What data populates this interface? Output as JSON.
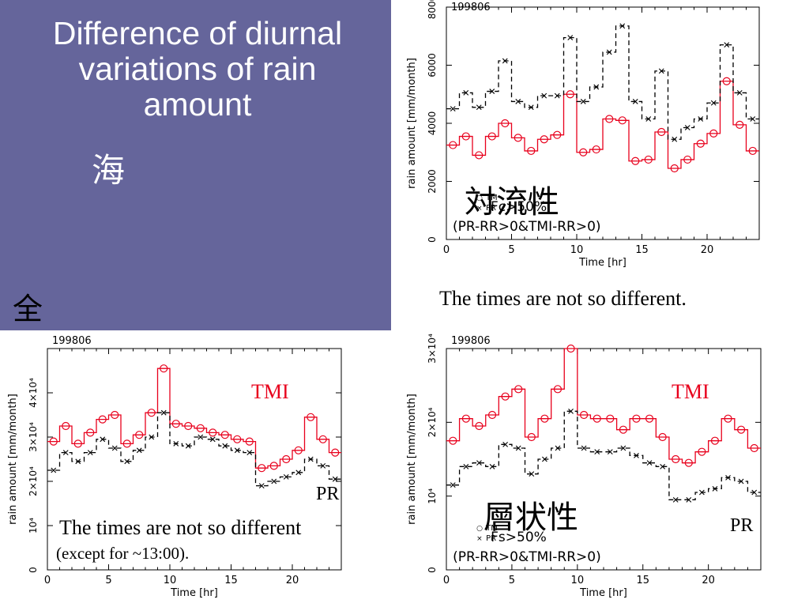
{
  "slide": {
    "title": "Difference of diurnal variations of rain amount",
    "label_sea": "海",
    "label_all": "全",
    "colors": {
      "panel": "#65659b",
      "tmi": "#e8001c",
      "pr": "#000000"
    }
  },
  "chart_data": [
    {
      "id": "convective",
      "type": "line",
      "step": true,
      "title": "199806",
      "xlabel": "Time [hr]",
      "ylabel": "rain amount [mm/month]",
      "xlim": [
        0,
        24
      ],
      "ylim": [
        0,
        8000
      ],
      "xticks": [
        0,
        5,
        10,
        15,
        20
      ],
      "yticks": [
        0,
        2000,
        4000,
        6000,
        8000
      ],
      "ytick_labels": [
        "0",
        "2000",
        "4000",
        "6000",
        "8000"
      ],
      "x": [
        0.5,
        1.5,
        2.5,
        3.5,
        4.5,
        5.5,
        6.5,
        7.5,
        8.5,
        9.5,
        10.5,
        11.5,
        12.5,
        13.5,
        14.5,
        15.5,
        16.5,
        17.5,
        18.5,
        19.5,
        20.5,
        21.5,
        22.5,
        23.5
      ],
      "series": [
        {
          "name": "TMI",
          "color": "#e8001c",
          "marker": "circle",
          "dash": false,
          "values": [
            3250,
            3550,
            2900,
            3550,
            4000,
            3500,
            3050,
            3450,
            3600,
            5000,
            3000,
            3100,
            4150,
            4100,
            2700,
            2750,
            3700,
            2450,
            2750,
            3300,
            3650,
            5450,
            3950,
            3050
          ]
        },
        {
          "name": "PR",
          "color": "#000000",
          "marker": "x",
          "dash": true,
          "values": [
            4500,
            5050,
            4550,
            5100,
            6150,
            4750,
            4550,
            4950,
            4950,
            6950,
            4750,
            5250,
            6450,
            7350,
            4750,
            4150,
            5800,
            3450,
            3850,
            4150,
            4700,
            6700,
            5050,
            4150
          ]
        }
      ],
      "legend": {
        "tm": "TM",
        "pr": "PR",
        "cond": "Fc>50%",
        "filter": "(PR-RR>0&TMI-RR>0)"
      },
      "heading": "対流性",
      "note": "The times are not so different."
    },
    {
      "id": "all",
      "type": "line",
      "step": true,
      "title": "199806",
      "xlabel": "Time [hr]",
      "ylabel": "rain amount [mm/month]",
      "xlim": [
        0,
        24
      ],
      "ylim": [
        0,
        50000
      ],
      "xticks": [
        0,
        5,
        10,
        15,
        20
      ],
      "yticks": [
        0,
        10000,
        20000,
        30000,
        40000
      ],
      "ytick_labels": [
        "0",
        "10⁴",
        "2×10⁴",
        "3×10⁴",
        "4×10⁴"
      ],
      "x": [
        0.5,
        1.5,
        2.5,
        3.5,
        4.5,
        5.5,
        6.5,
        7.5,
        8.5,
        9.5,
        10.5,
        11.5,
        12.5,
        13.5,
        14.5,
        15.5,
        16.5,
        17.5,
        18.5,
        19.5,
        20.5,
        21.5,
        22.5,
        23.5
      ],
      "series": [
        {
          "name": "TMI",
          "color": "#e8001c",
          "marker": "circle",
          "dash": false,
          "values": [
            29000,
            32500,
            28500,
            31000,
            34000,
            35000,
            28500,
            30500,
            35500,
            45500,
            33000,
            32500,
            32000,
            31000,
            30500,
            29500,
            29000,
            23000,
            23500,
            25000,
            27000,
            34500,
            29500,
            26500
          ]
        },
        {
          "name": "PR",
          "color": "#000000",
          "marker": "x",
          "dash": true,
          "values": [
            22500,
            26500,
            24500,
            26500,
            29500,
            27500,
            24500,
            27000,
            30000,
            35500,
            28500,
            28000,
            30000,
            29500,
            28000,
            27000,
            26500,
            19000,
            20000,
            21000,
            22000,
            25000,
            23500,
            20500
          ]
        }
      ],
      "legend": {
        "tm": "",
        "pr": "",
        "cond": "",
        "filter": ""
      },
      "label_tmi": "TMI",
      "label_pr": "PR",
      "note": "The times are not so different",
      "note_paren": "(except for ~13:00)."
    },
    {
      "id": "stratiform",
      "type": "line",
      "step": true,
      "title": "199806",
      "xlabel": "Time [hr]",
      "ylabel": "rain amount [mm/month]",
      "xlim": [
        0,
        24
      ],
      "ylim": [
        0,
        30000
      ],
      "xticks": [
        0,
        5,
        10,
        15,
        20
      ],
      "yticks": [
        0,
        10000,
        20000,
        30000
      ],
      "ytick_labels": [
        "0",
        "10⁴",
        "2×10⁴",
        "3×10⁴"
      ],
      "x": [
        0.5,
        1.5,
        2.5,
        3.5,
        4.5,
        5.5,
        6.5,
        7.5,
        8.5,
        9.5,
        10.5,
        11.5,
        12.5,
        13.5,
        14.5,
        15.5,
        16.5,
        17.5,
        18.5,
        19.5,
        20.5,
        21.5,
        22.5,
        23.5
      ],
      "series": [
        {
          "name": "TMI",
          "color": "#e8001c",
          "marker": "circle",
          "dash": false,
          "values": [
            17500,
            20500,
            19500,
            21000,
            23500,
            24500,
            18000,
            20500,
            24500,
            30000,
            21000,
            20500,
            20500,
            19000,
            20500,
            20500,
            18000,
            15000,
            14500,
            16000,
            17500,
            20500,
            19000,
            16500
          ]
        },
        {
          "name": "PR",
          "color": "#000000",
          "marker": "x",
          "dash": true,
          "values": [
            11500,
            14000,
            14500,
            14000,
            17000,
            16500,
            13000,
            15000,
            16500,
            21500,
            16500,
            16000,
            16000,
            16500,
            15500,
            14500,
            14000,
            9500,
            9500,
            10500,
            11000,
            12500,
            12000,
            10500
          ]
        }
      ],
      "legend": {
        "tm": "TM",
        "pr": "PR",
        "cond": "Fs>50%",
        "filter": "(PR-RR>0&TMI-RR>0)"
      },
      "label_tmi": "TMI",
      "label_pr": "PR",
      "heading": "層状性"
    }
  ]
}
